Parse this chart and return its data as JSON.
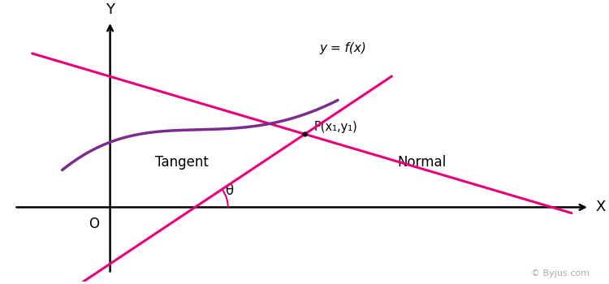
{
  "background_color": "#ffffff",
  "curve_color": "#7B2D8B",
  "tangent_color": "#E8007A",
  "normal_color": "#E8007A",
  "axis_color": "#000000",
  "text_color": "#000000",
  "curve_label": "y = f(x)",
  "tangent_label": "Tangent",
  "normal_label": "Normal",
  "point_label": "P(x₁,y₁)",
  "theta_label": "θ",
  "origin_label": "O",
  "x_label": "X",
  "y_label": "Y",
  "watermark": "© Byjus.com",
  "fig_width": 7.5,
  "fig_height": 3.5,
  "dpi": 100
}
